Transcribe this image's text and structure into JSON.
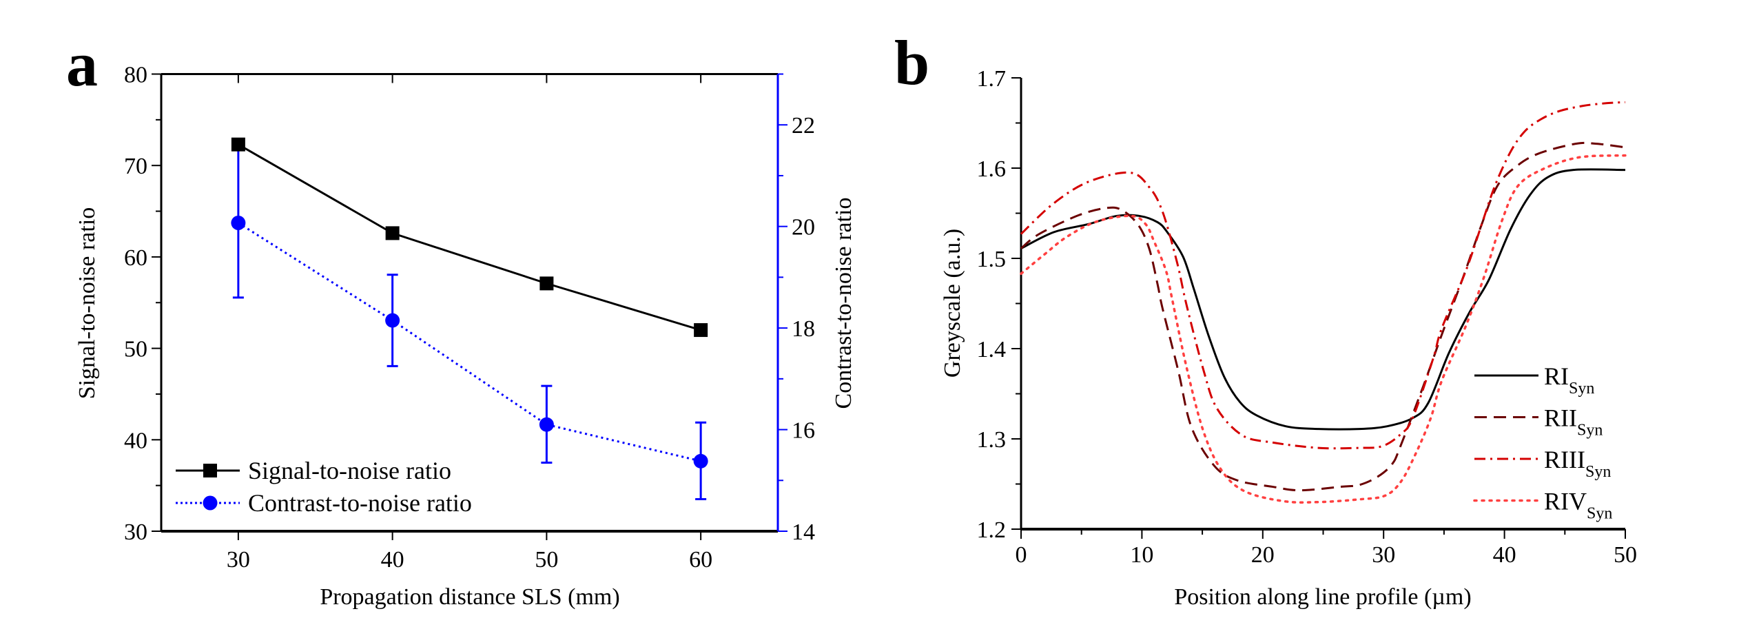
{
  "figure": {
    "panel_a_letter": "a",
    "panel_b_letter": "b"
  },
  "chart_data": [
    {
      "id": "a",
      "type": "line",
      "title": "",
      "xlabel": "Propagation distance SLS (mm)",
      "ylabel": "Signal-to-noise ratio",
      "y2label": "Contrast-to-noise ratio",
      "xlim": [
        25,
        65
      ],
      "ylim": [
        30,
        80
      ],
      "y2lim": [
        14,
        23
      ],
      "x_ticks": [
        30,
        40,
        50,
        60
      ],
      "x_tick_labels": [
        "30",
        "40",
        "50",
        "60"
      ],
      "y_ticks": [
        30,
        40,
        50,
        60,
        70,
        80
      ],
      "y_tick_labels": [
        "30",
        "40",
        "50",
        "60",
        "70",
        "80"
      ],
      "y_minor_step": 5,
      "y2_ticks": [
        14,
        16,
        18,
        20,
        22
      ],
      "y2_tick_labels": [
        "14",
        "16",
        "18",
        "20",
        "22"
      ],
      "y2_minor_step": 1,
      "grid": false,
      "legend_position": "bottom-left",
      "x": [
        30,
        40,
        50,
        60
      ],
      "series": [
        {
          "name": "Signal-to-noise ratio",
          "axis": "left",
          "color": "#000000",
          "marker": "square",
          "line_style": "solid",
          "values": [
            72.3,
            62.6,
            57.1,
            52.0
          ]
        },
        {
          "name": "Contrast-to-noise ratio",
          "axis": "right",
          "color": "#0000ff",
          "marker": "circle",
          "line_style": "dotted",
          "values": [
            20.07,
            18.15,
            16.1,
            15.38
          ],
          "error_low": [
            18.6,
            17.25,
            15.35,
            14.63
          ],
          "error_high": [
            21.55,
            19.05,
            16.86,
            16.14
          ]
        }
      ],
      "axis_colors": {
        "left": "#000000",
        "right": "#0000ff"
      }
    },
    {
      "id": "b",
      "type": "line",
      "title": "",
      "xlabel": "Position along line profile (µm)",
      "ylabel": "Greyscale (a.u.)",
      "xlim": [
        0,
        50
      ],
      "ylim": [
        1.2,
        1.7
      ],
      "x_ticks": [
        0,
        10,
        20,
        30,
        40,
        50
      ],
      "x_tick_labels": [
        "0",
        "10",
        "20",
        "30",
        "40",
        "50"
      ],
      "x_minor_step": 5,
      "y_ticks": [
        1.2,
        1.3,
        1.4,
        1.5,
        1.6,
        1.7
      ],
      "y_tick_labels": [
        "1.2",
        "1.3",
        "1.4",
        "1.5",
        "1.6",
        "1.7"
      ],
      "y_minor_step": 0.05,
      "grid": false,
      "legend_position": "bottom-right",
      "series": [
        {
          "name": "RI",
          "subscript": "Syn",
          "color": "#000000",
          "line_style": "solid",
          "x": [
            0,
            2.7,
            5.6,
            7.9,
            9.8,
            11.3,
            12.1,
            13.4,
            14.3,
            15.5,
            16.8,
            18.1,
            19.5,
            21.9,
            24.6,
            28.0,
            30.3,
            32.4,
            33.7,
            35.4,
            37.1,
            38.7,
            40.5,
            42.1,
            43.6,
            45.7,
            50
          ],
          "values": [
            1.511,
            1.529,
            1.538,
            1.547,
            1.547,
            1.54,
            1.529,
            1.502,
            1.466,
            1.415,
            1.369,
            1.341,
            1.326,
            1.314,
            1.311,
            1.311,
            1.314,
            1.323,
            1.34,
            1.395,
            1.44,
            1.476,
            1.532,
            1.57,
            1.59,
            1.598,
            1.598
          ]
        },
        {
          "name": "RII",
          "subscript": "Syn",
          "color": "#6b0000",
          "line_style": "dashed",
          "x": [
            0,
            1.5,
            4.8,
            7.2,
            8.4,
            9.7,
            10.6,
            11.3,
            11.7,
            13.0,
            14.1,
            16.0,
            17.9,
            20.8,
            23.1,
            26.5,
            28.0,
            29.5,
            30.7,
            31.4,
            33.3,
            34.8,
            36.5,
            38.1,
            39.4,
            40.9,
            42.8,
            45.9,
            47.6,
            50
          ],
          "values": [
            1.511,
            1.527,
            1.548,
            1.556,
            1.553,
            1.537,
            1.511,
            1.471,
            1.445,
            1.376,
            1.313,
            1.27,
            1.254,
            1.247,
            1.243,
            1.247,
            1.249,
            1.258,
            1.272,
            1.292,
            1.359,
            1.415,
            1.476,
            1.537,
            1.58,
            1.601,
            1.616,
            1.627,
            1.627,
            1.623
          ]
        },
        {
          "name": "RIII",
          "subscript": "Syn",
          "color": "#d40000",
          "line_style": "dash-dot",
          "x": [
            0,
            2.7,
            5.6,
            9.0,
            10.6,
            11.7,
            12.9,
            13.7,
            15.1,
            16.2,
            18.3,
            20.8,
            24.6,
            28.0,
            29.9,
            31.4,
            32.4,
            34.1,
            34.8,
            36.8,
            38.1,
            39.2,
            40.5,
            41.7,
            43.0,
            44.5,
            46.5,
            48.5,
            50
          ],
          "values": [
            1.527,
            1.561,
            1.585,
            1.595,
            1.579,
            1.552,
            1.496,
            1.448,
            1.376,
            1.334,
            1.304,
            1.296,
            1.29,
            1.29,
            1.292,
            1.305,
            1.323,
            1.389,
            1.422,
            1.486,
            1.537,
            1.58,
            1.618,
            1.641,
            1.654,
            1.663,
            1.669,
            1.672,
            1.673
          ]
        },
        {
          "name": "RIV",
          "subscript": "Syn",
          "color": "#ff4040",
          "line_style": "dotted",
          "x": [
            0,
            1.9,
            3.8,
            6.3,
            9.1,
            10.3,
            11.0,
            12.0,
            12.5,
            13.7,
            15.1,
            16.6,
            18.5,
            21.7,
            24.6,
            28.0,
            30.1,
            31.4,
            32.6,
            33.9,
            34.8,
            36.8,
            38.3,
            39.8,
            41.1,
            43.2,
            46.2,
            50
          ],
          "values": [
            1.483,
            1.504,
            1.524,
            1.541,
            1.547,
            1.538,
            1.519,
            1.486,
            1.455,
            1.379,
            1.308,
            1.265,
            1.242,
            1.231,
            1.23,
            1.233,
            1.237,
            1.252,
            1.282,
            1.323,
            1.364,
            1.425,
            1.479,
            1.542,
            1.58,
            1.599,
            1.612,
            1.614
          ]
        }
      ]
    }
  ]
}
